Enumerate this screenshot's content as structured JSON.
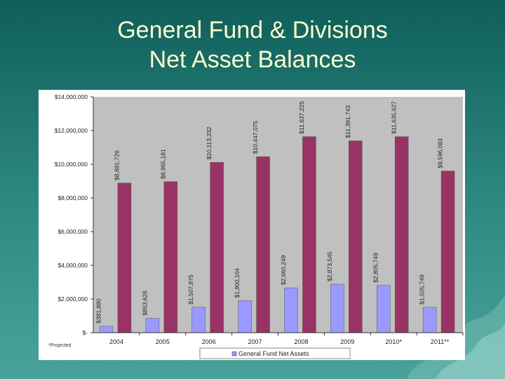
{
  "slide": {
    "title_line1": "General Fund & Divisions",
    "title_line2": "Net Asset Balances"
  },
  "footnote": "*Projected",
  "colors": {
    "background": "#2f8a82",
    "title_text": "#fffbd2",
    "plot_area": "#c0c0c0",
    "general_fund": "#9999ff",
    "divisions": "#993366"
  },
  "chart_data": {
    "type": "bar",
    "categories": [
      "2004",
      "2005",
      "2006",
      "2007",
      "2008",
      "2009",
      "2010*",
      "2011**"
    ],
    "series": [
      {
        "name": "General Fund Net Assets",
        "values": [
          381880,
          853626,
          1507875,
          1900104,
          2660249,
          2873545,
          2805749,
          1505749
        ],
        "labels": [
          "$381,880",
          "$853,626",
          "$1,507,875",
          "$1,900,104",
          "$2,660,249",
          "$2,873,545",
          "$2,805,749",
          "$1,505,749"
        ]
      },
      {
        "values": [
          8881726,
          8965181,
          10113332,
          10447075,
          11637225,
          11391743,
          11635627,
          9596083
        ],
        "labels": [
          "$8,881,726",
          "$8,965,181",
          "$10,113,332",
          "$10,447,075",
          "$11,637,225",
          "$11,391,743",
          "$11,635,627",
          "$9,596,083"
        ]
      }
    ],
    "ylim": [
      0,
      14000000
    ],
    "yticks": [
      0,
      2000000,
      4000000,
      6000000,
      8000000,
      10000000,
      12000000,
      14000000
    ],
    "ytick_labels": [
      "$-",
      "$2,000,000",
      "$4,000,000",
      "$6,000,000",
      "$8,000,000",
      "$10,000,000",
      "$12,000,000",
      "$14,000,000"
    ],
    "grid": false,
    "legend_position": "bottom"
  }
}
